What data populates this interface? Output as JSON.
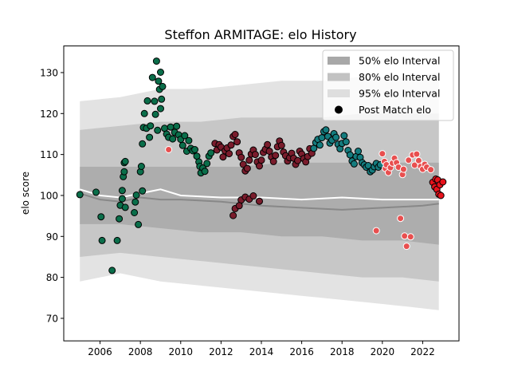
{
  "chart_data": {
    "type": "scatter",
    "title": "Steffon ARMITAGE: elo History",
    "xlabel": "",
    "ylabel": "elo score",
    "xlim": [
      2004.2,
      2023.8
    ],
    "ylim": [
      64.5,
      136.5
    ],
    "x_ticks": [
      2006,
      2008,
      2010,
      2012,
      2014,
      2016,
      2018,
      2020,
      2022
    ],
    "y_ticks": [
      70,
      80,
      90,
      100,
      110,
      120,
      130
    ],
    "legend_position": "top-right",
    "legend": [
      {
        "label": "50% elo Interval",
        "kind": "band",
        "color": "#a8a8a8"
      },
      {
        "label": "80% elo Interval",
        "kind": "band",
        "color": "#c2c2c2"
      },
      {
        "label": "95% elo Interval",
        "kind": "band",
        "color": "#dedede"
      },
      {
        "label": "Post Match elo",
        "kind": "marker",
        "color": "#000000"
      }
    ],
    "intervals": {
      "x": [
        2005,
        2007,
        2009,
        2011,
        2013,
        2015,
        2017,
        2019,
        2021,
        2022.8
      ],
      "band95": {
        "lower": [
          79,
          81,
          79,
          78,
          77,
          76,
          75,
          74,
          73,
          72
        ],
        "upper": [
          123,
          124,
          126,
          126,
          127,
          128,
          128,
          129,
          129,
          130
        ]
      },
      "band80": {
        "lower": [
          85,
          86,
          85,
          84,
          83,
          82,
          81,
          80,
          80,
          79
        ],
        "upper": [
          116,
          117,
          118,
          118,
          119,
          119,
          119,
          120,
          120,
          120
        ]
      },
      "band50": {
        "lower": [
          93,
          93,
          92,
          91,
          91,
          90,
          90,
          89,
          89,
          88
        ],
        "upper": [
          107,
          107,
          107,
          107,
          107,
          108,
          108,
          108,
          108,
          108
        ]
      }
    },
    "median_lines": [
      {
        "name": "white-median",
        "color": "#ffffff",
        "x": [
          2005,
          2006,
          2007,
          2008,
          2009,
          2010,
          2012,
          2014,
          2016,
          2018,
          2020,
          2022,
          2022.8
        ],
        "y": [
          101.5,
          100,
          99.5,
          100.5,
          101.5,
          100,
          99.5,
          99.5,
          99,
          99.5,
          99,
          99,
          99
        ]
      },
      {
        "name": "gray-median",
        "color": "#888888",
        "x": [
          2005,
          2006,
          2007,
          2008,
          2009,
          2010,
          2012,
          2014,
          2016,
          2018,
          2020,
          2022,
          2022.8
        ],
        "y": [
          100.5,
          99,
          98.5,
          99.5,
          99,
          99,
          98.5,
          97.5,
          97,
          96.5,
          97,
          97.5,
          98
        ]
      }
    ],
    "series": [
      {
        "color": "#0a6e4a",
        "points": [
          [
            2005.0,
            100.2
          ],
          [
            2005.8,
            100.8
          ],
          [
            2006.05,
            94.8
          ],
          [
            2006.1,
            89.0
          ],
          [
            2006.6,
            81.7
          ],
          [
            2006.85,
            89.0
          ],
          [
            2006.95,
            94.3
          ],
          [
            2007.0,
            97.6
          ],
          [
            2007.1,
            99.2
          ],
          [
            2007.1,
            101.2
          ],
          [
            2007.15,
            104.6
          ],
          [
            2007.2,
            105.8
          ],
          [
            2007.2,
            108.0
          ],
          [
            2007.25,
            108.3
          ],
          [
            2007.25,
            97.1
          ],
          [
            2007.7,
            95.8
          ],
          [
            2007.75,
            98.4
          ],
          [
            2007.8,
            100.1
          ],
          [
            2007.9,
            92.9
          ],
          [
            2008.0,
            105.8
          ],
          [
            2008.05,
            107.1
          ],
          [
            2008.1,
            101.1
          ],
          [
            2008.1,
            112.6
          ],
          [
            2008.15,
            116.6
          ],
          [
            2008.2,
            120.0
          ],
          [
            2008.3,
            116.4
          ],
          [
            2008.35,
            123.1
          ],
          [
            2008.45,
            114.2
          ],
          [
            2008.5,
            117.0
          ],
          [
            2008.6,
            128.8
          ],
          [
            2008.7,
            123.0
          ],
          [
            2008.75,
            119.8
          ],
          [
            2008.8,
            132.8
          ],
          [
            2008.85,
            115.9
          ],
          [
            2008.9,
            127.9
          ],
          [
            2008.95,
            125.9
          ],
          [
            2009.0,
            130.1
          ],
          [
            2009.0,
            121.2
          ],
          [
            2009.05,
            123.5
          ],
          [
            2009.1,
            126.6
          ],
          [
            2009.2,
            116.4
          ],
          [
            2009.3,
            115.0
          ],
          [
            2009.4,
            114.2
          ],
          [
            2009.5,
            116.7
          ],
          [
            2009.6,
            113.8
          ],
          [
            2009.7,
            115.4
          ],
          [
            2009.8,
            116.9
          ],
          [
            2009.9,
            114.8
          ],
          [
            2010.0,
            113.7
          ],
          [
            2010.1,
            112.2
          ],
          [
            2010.2,
            114.6
          ],
          [
            2010.3,
            110.8
          ],
          [
            2010.4,
            113.4
          ],
          [
            2010.5,
            111.5
          ],
          [
            2010.6,
            110.9
          ],
          [
            2010.7,
            111.2
          ],
          [
            2010.8,
            109.6
          ],
          [
            2010.9,
            108.2
          ],
          [
            2010.95,
            107.1
          ],
          [
            2011.0,
            105.5
          ],
          [
            2011.1,
            106.7
          ],
          [
            2011.2,
            105.9
          ],
          [
            2011.3,
            107.8
          ],
          [
            2011.4,
            109.6
          ],
          [
            2011.5,
            110.4
          ]
        ]
      },
      {
        "color": "#7a1c2c",
        "points": [
          [
            2011.7,
            112.7
          ],
          [
            2011.8,
            111.1
          ],
          [
            2011.9,
            112.4
          ],
          [
            2012.0,
            111.8
          ],
          [
            2012.1,
            109.4
          ],
          [
            2012.2,
            110.9
          ],
          [
            2012.3,
            111.6
          ],
          [
            2012.4,
            110.2
          ],
          [
            2012.5,
            112.3
          ],
          [
            2012.6,
            114.4
          ],
          [
            2012.7,
            114.9
          ],
          [
            2012.8,
            113.1
          ],
          [
            2012.9,
            110.4
          ],
          [
            2013.0,
            109.3
          ],
          [
            2013.1,
            107.6
          ],
          [
            2013.2,
            106.0
          ],
          [
            2013.3,
            106.6
          ],
          [
            2013.4,
            108.6
          ],
          [
            2013.5,
            110.1
          ],
          [
            2013.6,
            111.1
          ],
          [
            2013.7,
            110.0
          ],
          [
            2013.8,
            108.2
          ],
          [
            2013.9,
            107.2
          ],
          [
            2014.0,
            108.6
          ],
          [
            2014.1,
            110.5
          ],
          [
            2014.2,
            111.3
          ],
          [
            2014.3,
            112.4
          ],
          [
            2014.4,
            110.8
          ],
          [
            2014.5,
            109.4
          ],
          [
            2014.6,
            108.3
          ],
          [
            2014.7,
            109.8
          ],
          [
            2014.8,
            111.9
          ],
          [
            2014.9,
            113.3
          ],
          [
            2015.0,
            112.2
          ],
          [
            2015.1,
            110.6
          ],
          [
            2015.2,
            109.7
          ],
          [
            2015.3,
            108.4
          ],
          [
            2015.4,
            109.2
          ],
          [
            2015.5,
            110.3
          ],
          [
            2015.6,
            109.1
          ],
          [
            2015.7,
            107.6
          ],
          [
            2015.8,
            108.5
          ],
          [
            2015.9,
            110.8
          ],
          [
            2016.0,
            110.1
          ],
          [
            2016.1,
            109.0
          ],
          [
            2016.2,
            108.2
          ],
          [
            2016.3,
            109.5
          ],
          [
            2016.4,
            111.4
          ],
          [
            2016.5,
            110.3
          ],
          [
            2012.6,
            95.1
          ],
          [
            2012.7,
            96.8
          ],
          [
            2013.0,
            98.9
          ],
          [
            2013.2,
            99.6
          ],
          [
            2013.4,
            99.1
          ],
          [
            2013.6,
            99.9
          ],
          [
            2013.9,
            98.6
          ],
          [
            2012.9,
            97.5
          ]
        ]
      },
      {
        "color": "#147c7e",
        "points": [
          [
            2016.6,
            111.5
          ],
          [
            2016.7,
            112.9
          ],
          [
            2016.8,
            113.7
          ],
          [
            2016.9,
            112.3
          ],
          [
            2017.0,
            114.1
          ],
          [
            2017.1,
            115.6
          ],
          [
            2017.2,
            116.0
          ],
          [
            2017.3,
            114.4
          ],
          [
            2017.4,
            112.8
          ],
          [
            2017.5,
            113.5
          ],
          [
            2017.6,
            115.1
          ],
          [
            2017.7,
            114.2
          ],
          [
            2017.8,
            112.5
          ],
          [
            2017.9,
            111.4
          ],
          [
            2018.0,
            112.7
          ],
          [
            2018.1,
            114.6
          ],
          [
            2018.2,
            113.1
          ],
          [
            2018.3,
            111.0
          ],
          [
            2018.4,
            109.9
          ],
          [
            2018.5,
            108.4
          ],
          [
            2018.6,
            107.7
          ],
          [
            2018.7,
            109.5
          ],
          [
            2018.8,
            110.8
          ],
          [
            2018.9,
            109.3
          ],
          [
            2019.0,
            108.0
          ],
          [
            2019.1,
            107.5
          ],
          [
            2019.2,
            106.9
          ],
          [
            2019.3,
            107.3
          ],
          [
            2019.4,
            105.8
          ],
          [
            2019.5,
            106.2
          ],
          [
            2019.6,
            107.0
          ],
          [
            2019.7,
            107.8
          ],
          [
            2019.8,
            106.9
          ],
          [
            2019.9,
            107.5
          ]
        ]
      },
      {
        "color": "#e84f4f",
        "points": [
          [
            2009.4,
            111.2
          ],
          [
            2019.7,
            91.4
          ],
          [
            2020.0,
            110.2
          ],
          [
            2020.1,
            108.3
          ],
          [
            2020.15,
            106.6
          ],
          [
            2020.2,
            107.5
          ],
          [
            2020.3,
            105.6
          ],
          [
            2020.4,
            106.8
          ],
          [
            2020.5,
            107.9
          ],
          [
            2020.6,
            109.1
          ],
          [
            2020.7,
            108.0
          ],
          [
            2020.8,
            106.9
          ],
          [
            2020.9,
            94.4
          ],
          [
            2021.0,
            105.1
          ],
          [
            2021.05,
            106.4
          ],
          [
            2021.1,
            90.1
          ],
          [
            2021.2,
            87.6
          ],
          [
            2021.3,
            108.6
          ],
          [
            2021.4,
            89.9
          ],
          [
            2021.5,
            109.9
          ],
          [
            2021.6,
            107.4
          ],
          [
            2021.7,
            110.1
          ],
          [
            2021.8,
            108.5
          ],
          [
            2021.9,
            107.1
          ],
          [
            2022.0,
            106.4
          ],
          [
            2022.1,
            107.6
          ],
          [
            2022.2,
            106.9
          ],
          [
            2022.4,
            106.3
          ]
        ]
      },
      {
        "color": "#e8121c",
        "points": [
          [
            2022.5,
            103.2
          ],
          [
            2022.6,
            102.1
          ],
          [
            2022.65,
            104.0
          ],
          [
            2022.7,
            101.5
          ],
          [
            2022.75,
            103.8
          ],
          [
            2022.8,
            100.3
          ],
          [
            2022.85,
            102.6
          ],
          [
            2022.9,
            100.0
          ],
          [
            2023.0,
            103.3
          ]
        ]
      }
    ]
  }
}
